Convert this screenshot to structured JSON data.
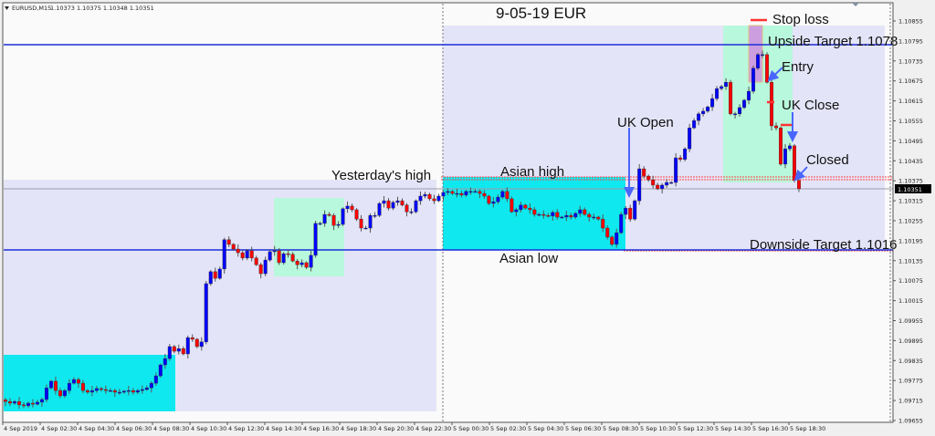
{
  "header": {
    "symbol": "EURUSD,M15",
    "ohlc": "1.10373 1.10375 1.10348 1.10351"
  },
  "colors": {
    "bull": "#0000ff",
    "bear": "#ff0000",
    "session_box": "#e4e4f8",
    "asian_box": "#10e8ef",
    "london_box": "#b8f8dc",
    "stop_box": "#cc9ee0",
    "target_line": "#1c2fd8",
    "arrow": "#4a66ff",
    "marker": "#ff3333"
  },
  "chart_data": {
    "type": "candlestick",
    "title": "9-05-19  EUR",
    "timeframe": "M15",
    "ylim": [
      1.09655,
      1.10855
    ],
    "current_price": "1.10351",
    "y_ticks": [
      "1.10855",
      "1.10795",
      "1.10735",
      "1.10675",
      "1.10615",
      "1.10555",
      "1.10495",
      "1.10435",
      "1.10375",
      "1.10315",
      "1.10255",
      "1.10195",
      "1.10135",
      "1.10075",
      "1.10015",
      "1.09955",
      "1.09895",
      "1.09835",
      "1.09775",
      "1.09715",
      "1.09655"
    ],
    "x_ticks": [
      "4 Sep 2019",
      "4 Sep 02:30",
      "4 Sep 04:30",
      "4 Sep 06:30",
      "4 Sep 08:30",
      "4 Sep 10:30",
      "4 Sep 12:30",
      "4 Sep 14:30",
      "4 Sep 16:30",
      "4 Sep 18:30",
      "4 Sep 20:30",
      "4 Sep 22:30",
      "5 Sep 00:30",
      "5 Sep 02:30",
      "5 Sep 04:30",
      "5 Sep 06:30",
      "5 Sep 08:30",
      "5 Sep 10:30",
      "5 Sep 12:30",
      "5 Sep 14:30",
      "5 Sep 16:30",
      "5 Sep 18:30"
    ],
    "closes": [
      1.09712,
      1.09707,
      1.09712,
      1.09702,
      1.09699,
      1.09707,
      1.09704,
      1.0971,
      1.09718,
      1.09753,
      1.09773,
      1.09745,
      1.09729,
      1.09745,
      1.09767,
      1.09778,
      1.09767,
      1.09745,
      1.0974,
      1.09745,
      1.09751,
      1.09748,
      1.09745,
      1.09745,
      1.0974,
      1.0974,
      1.09743,
      1.09745,
      1.0974,
      1.09745,
      1.09748,
      1.09753,
      1.09767,
      1.09789,
      1.09822,
      1.09841,
      1.09877,
      1.09863,
      1.09871,
      1.09855,
      1.09904,
      1.09899,
      1.09877,
      1.09891,
      1.10066,
      1.10102,
      1.10082,
      1.1011,
      1.10198,
      1.10184,
      1.1017,
      1.10159,
      1.10143,
      1.10165,
      1.10143,
      1.10123,
      1.10096,
      1.10137,
      1.10162,
      1.10165,
      1.10129,
      1.10156,
      1.10154,
      1.10134,
      1.10123,
      1.10129,
      1.10115,
      1.10151,
      1.10247,
      1.10247,
      1.10274,
      1.10271,
      1.10241,
      1.10244,
      1.10291,
      1.10299,
      1.10288,
      1.1026,
      1.10233,
      1.10233,
      1.10271,
      1.10271,
      1.10307,
      1.10315,
      1.10293,
      1.1031,
      1.10315,
      1.10302,
      1.10282,
      1.10282,
      1.10315,
      1.10329,
      1.10334,
      1.10321,
      1.10315,
      1.10329,
      1.1034,
      1.10343,
      1.10337,
      1.10337,
      1.10332,
      1.10343,
      1.10343,
      1.10343,
      1.10337,
      1.10329,
      1.10307,
      1.10312,
      1.10326,
      1.10343,
      1.10321,
      1.10282,
      1.10288,
      1.10302,
      1.10293,
      1.10288,
      1.10274,
      1.10274,
      1.10271,
      1.10269,
      1.1028,
      1.10266,
      1.10266,
      1.10271,
      1.10266,
      1.10277,
      1.10288,
      1.10274,
      1.10266,
      1.10266,
      1.1026,
      1.10233,
      1.10206,
      1.10184,
      1.10219,
      1.10274,
      1.10293,
      1.1026,
      1.10315,
      1.10411,
      1.10389,
      1.10378,
      1.10362,
      1.10351,
      1.10362,
      1.1037,
      1.1037,
      1.10444,
      1.10439,
      1.10471,
      1.10534,
      1.10556,
      1.10576,
      1.10584,
      1.10597,
      1.10622,
      1.10652,
      1.10658,
      1.10671,
      1.10576,
      1.10576,
      1.10595,
      1.10617,
      1.10644,
      1.10713,
      1.10754,
      1.10754,
      1.10671,
      1.1054,
      1.10534,
      1.10425,
      1.10471,
      1.1048,
      1.10376,
      1.10351
    ]
  },
  "annotations": {
    "yesterdays_high": "Yesterday's high",
    "asian_high": "Asian high",
    "asian_low": "Asian low",
    "uk_open": "UK Open",
    "stop_loss": "Stop loss",
    "upside_target": "Upside Target  1.1078",
    "entry": "Entry",
    "uk_close": "UK Close",
    "closed": "Closed",
    "downside_target": "Downside Target  1.1016"
  }
}
